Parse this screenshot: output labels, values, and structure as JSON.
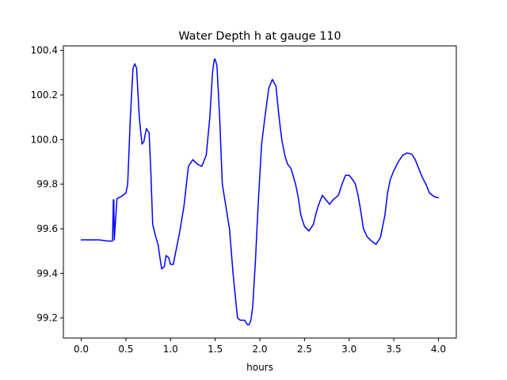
{
  "chart_data": {
    "type": "line",
    "title": "Water Depth h at gauge 110",
    "xlabel": "hours",
    "ylabel": "",
    "xlim": [
      -0.2,
      4.2
    ],
    "ylim": [
      99.11,
      100.42
    ],
    "xticks": [
      0.0,
      0.5,
      1.0,
      1.5,
      2.0,
      2.5,
      3.0,
      3.5,
      4.0
    ],
    "xtick_labels": [
      "0.0",
      "0.5",
      "1.0",
      "1.5",
      "2.0",
      "2.5",
      "3.0",
      "3.5",
      "4.0"
    ],
    "yticks": [
      99.2,
      99.4,
      99.6,
      99.8,
      100.0,
      100.2,
      100.4
    ],
    "ytick_labels": [
      "99.2",
      "99.4",
      "99.6",
      "99.8",
      "100.0",
      "100.2",
      "100.4"
    ],
    "grid": false,
    "legend": "none",
    "series": [
      {
        "color": "#0000ff",
        "x": [
          0.0,
          0.1,
          0.2,
          0.3,
          0.31,
          0.35,
          0.36,
          0.365,
          0.37,
          0.4,
          0.45,
          0.5,
          0.52,
          0.55,
          0.58,
          0.6,
          0.62,
          0.65,
          0.68,
          0.7,
          0.73,
          0.76,
          0.78,
          0.8,
          0.83,
          0.86,
          0.9,
          0.93,
          0.95,
          0.98,
          1.0,
          1.03,
          1.06,
          1.1,
          1.15,
          1.2,
          1.25,
          1.3,
          1.35,
          1.4,
          1.44,
          1.47,
          1.49,
          1.5,
          1.52,
          1.55,
          1.58,
          1.62,
          1.66,
          1.7,
          1.75,
          1.78,
          1.8,
          1.83,
          1.86,
          1.88,
          1.9,
          1.92,
          1.95,
          1.98,
          2.02,
          2.06,
          2.1,
          2.14,
          2.18,
          2.21,
          2.23,
          2.25,
          2.28,
          2.31,
          2.35,
          2.4,
          2.43,
          2.46,
          2.5,
          2.55,
          2.6,
          2.63,
          2.66,
          2.7,
          2.74,
          2.78,
          2.8,
          2.82,
          2.85,
          2.88,
          2.92,
          2.96,
          3.0,
          3.04,
          3.07,
          3.1,
          3.13,
          3.16,
          3.2,
          3.25,
          3.3,
          3.35,
          3.4,
          3.43,
          3.46,
          3.5,
          3.55,
          3.6,
          3.65,
          3.7,
          3.74,
          3.78,
          3.82,
          3.86,
          3.9,
          3.95,
          3.98,
          4.0
        ],
        "y": [
          99.55,
          99.55,
          99.55,
          99.545,
          99.545,
          99.545,
          99.73,
          99.73,
          99.55,
          99.735,
          99.745,
          99.76,
          99.8,
          100.1,
          100.32,
          100.34,
          100.32,
          100.1,
          99.98,
          99.99,
          100.05,
          100.03,
          99.85,
          99.62,
          99.57,
          99.53,
          99.42,
          99.43,
          99.48,
          99.47,
          99.44,
          99.44,
          99.5,
          99.58,
          99.7,
          99.88,
          99.91,
          99.89,
          99.88,
          99.93,
          100.1,
          100.3,
          100.36,
          100.36,
          100.33,
          100.1,
          99.8,
          99.7,
          99.6,
          99.4,
          99.2,
          99.19,
          99.19,
          99.19,
          99.17,
          99.17,
          99.19,
          99.25,
          99.45,
          99.7,
          99.98,
          100.11,
          100.23,
          100.27,
          100.24,
          100.12,
          100.05,
          99.99,
          99.93,
          99.89,
          99.87,
          99.8,
          99.74,
          99.66,
          99.61,
          99.59,
          99.62,
          99.67,
          99.71,
          99.75,
          99.73,
          99.71,
          99.72,
          99.73,
          99.74,
          99.75,
          99.8,
          99.84,
          99.84,
          99.82,
          99.8,
          99.75,
          99.68,
          99.6,
          99.565,
          99.545,
          99.53,
          99.56,
          99.66,
          99.76,
          99.82,
          99.86,
          99.9,
          99.93,
          99.94,
          99.935,
          99.91,
          99.87,
          99.83,
          99.8,
          99.76,
          99.745,
          99.74,
          99.74
        ]
      }
    ]
  }
}
